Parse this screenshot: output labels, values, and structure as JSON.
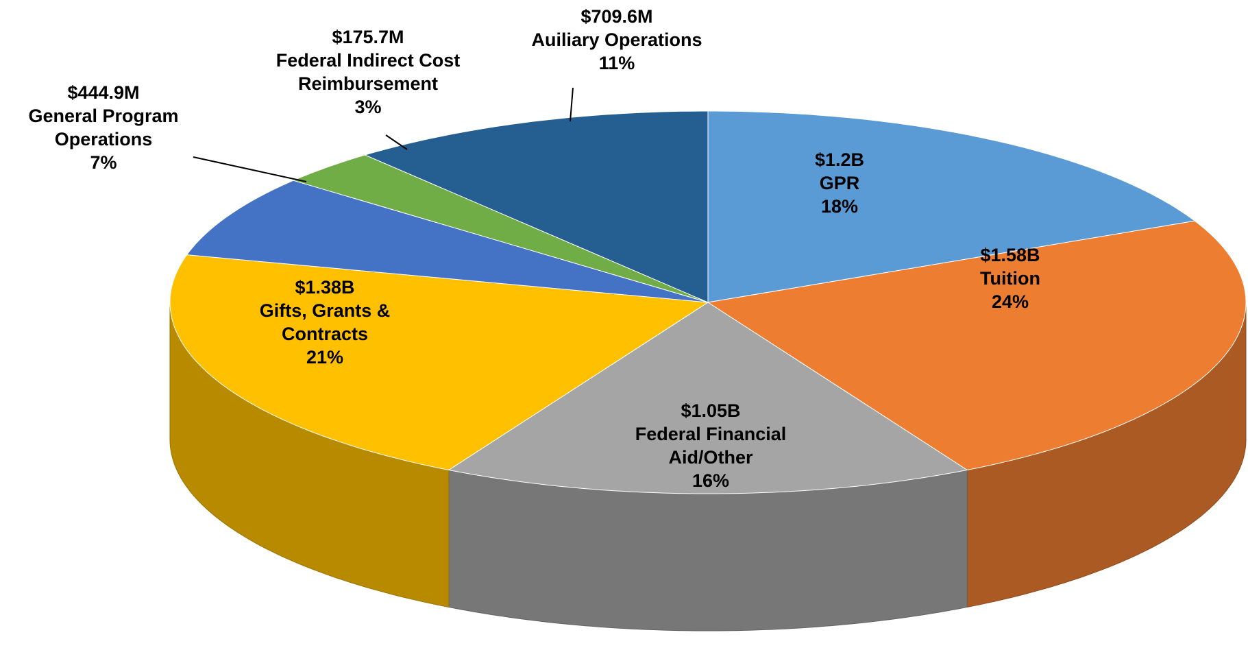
{
  "chart_data": {
    "type": "pie3d",
    "categories": [
      "GPR",
      "Tuition",
      "Federal Financial Aid/Other",
      "Gifts, Grants & Contracts",
      "General Program Operations",
      "Federal Indirect Cost Reimbursement",
      "Auiliary Operations"
    ],
    "amounts": [
      "$1.2B",
      "$1.58B",
      "$1.05B",
      "$1.38B",
      "$444.9M",
      "$175.7M",
      "$709.6M"
    ],
    "values": [
      18,
      24,
      16,
      21,
      7,
      3,
      11
    ],
    "value_labels": [
      "18%",
      "24%",
      "16%",
      "21%",
      "7%",
      "3%",
      "11%"
    ],
    "colors": [
      "#5b9bd5",
      "#ed7d31",
      "#a5a5a5",
      "#ffc000",
      "#4472c4",
      "#70ad47",
      "#255e91"
    ]
  }
}
